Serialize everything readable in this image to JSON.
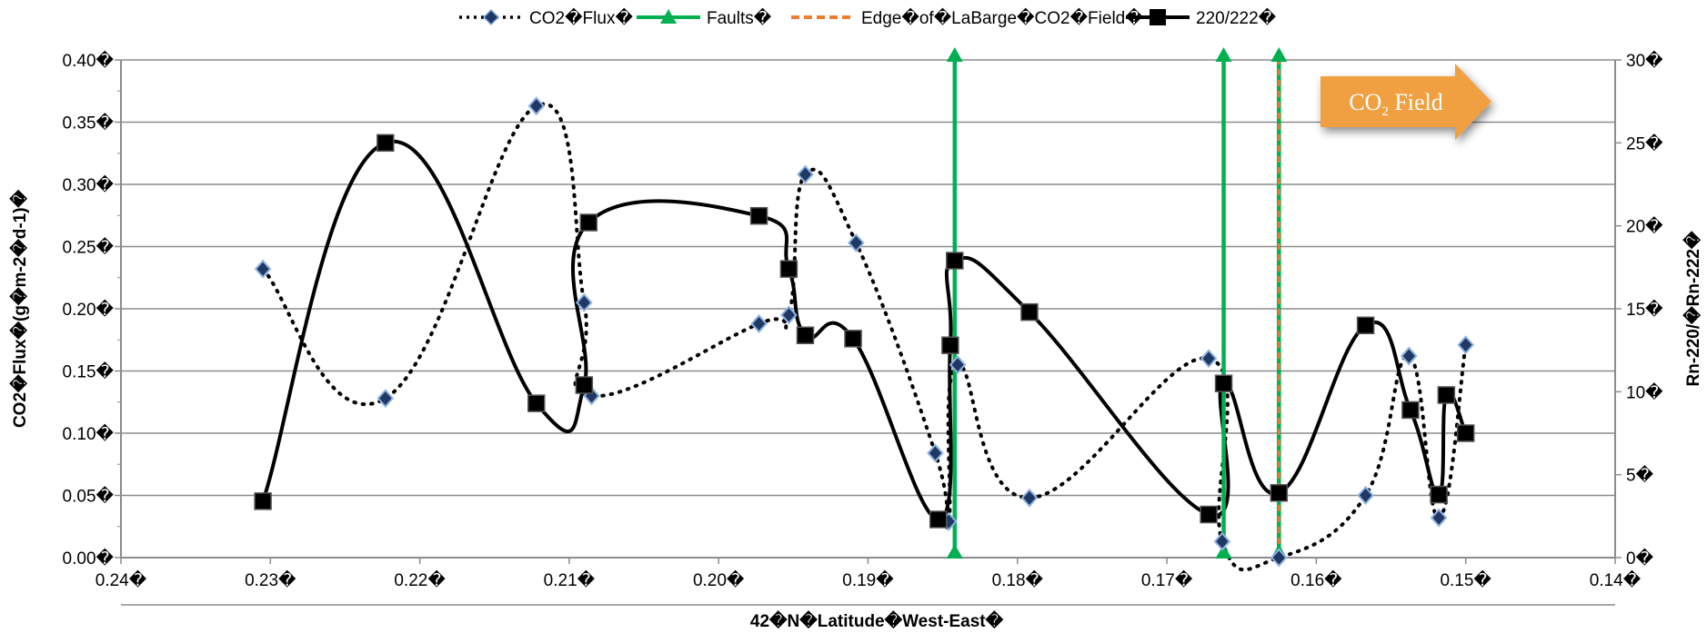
{
  "chart_data": {
    "type": "line",
    "x_axis": {
      "label": "42�N�Latitude�West-East�",
      "min": 0.14,
      "max": 0.24,
      "reversed": true,
      "ticks": [
        0.24,
        0.23,
        0.22,
        0.21,
        0.2,
        0.19,
        0.18,
        0.17,
        0.16,
        0.15,
        0.14
      ],
      "tick_labels": [
        "0.24�",
        "0.23�",
        "0.22�",
        "0.21�",
        "0.20�",
        "0.19�",
        "0.18�",
        "0.17�",
        "0.16�",
        "0.15�",
        "0.14�"
      ]
    },
    "y_left": {
      "label": "CO2�Flux�(g�m-2�d-1)�",
      "min": 0,
      "max": 0.4,
      "ticks": [
        0,
        0.05,
        0.1,
        0.15,
        0.2,
        0.25,
        0.3,
        0.35,
        0.4
      ],
      "tick_labels": [
        "0.00�",
        "0.05�",
        "0.10�",
        "0.15�",
        "0.20�",
        "0.25�",
        "0.30�",
        "0.35�",
        "0.40�"
      ]
    },
    "y_right": {
      "label": "Rn-220/�Rn-222�",
      "min": 0,
      "max": 30,
      "ticks": [
        0,
        5,
        10,
        15,
        20,
        25,
        30
      ],
      "tick_labels": [
        "0�",
        "5�",
        "10�",
        "15�",
        "20�",
        "25�",
        "30�"
      ]
    },
    "grid": true,
    "legend_position": "top-center",
    "series": [
      {
        "name": "CO2�Flux�",
        "axis": "left",
        "style": "dotted",
        "color": "#000000",
        "marker_color": "#1f3864",
        "marker": "diamond",
        "points": [
          {
            "x": 0.2305,
            "y": 0.232
          },
          {
            "x": 0.2223,
            "y": 0.128
          },
          {
            "x": 0.2122,
            "y": 0.363
          },
          {
            "x": 0.209,
            "y": 0.205
          },
          {
            "x": 0.2085,
            "y": 0.13
          },
          {
            "x": 0.1973,
            "y": 0.188
          },
          {
            "x": 0.1953,
            "y": 0.195
          },
          {
            "x": 0.1942,
            "y": 0.308
          },
          {
            "x": 0.1908,
            "y": 0.253
          },
          {
            "x": 0.1855,
            "y": 0.084
          },
          {
            "x": 0.1846,
            "y": 0.029
          },
          {
            "x": 0.184,
            "y": 0.155
          },
          {
            "x": 0.1792,
            "y": 0.048
          },
          {
            "x": 0.1672,
            "y": 0.16
          },
          {
            "x": 0.1663,
            "y": 0.013
          },
          {
            "x": 0.1625,
            "y": 0.0
          },
          {
            "x": 0.1567,
            "y": 0.05
          },
          {
            "x": 0.1538,
            "y": 0.162
          },
          {
            "x": 0.1518,
            "y": 0.032
          },
          {
            "x": 0.15,
            "y": 0.171
          }
        ]
      },
      {
        "name": "220/222�",
        "axis": "right",
        "style": "solid",
        "color": "#000000",
        "marker": "square",
        "points": [
          {
            "x": 0.2305,
            "y": 3.4
          },
          {
            "x": 0.2223,
            "y": 25.0
          },
          {
            "x": 0.2122,
            "y": 9.3
          },
          {
            "x": 0.209,
            "y": 10.4
          },
          {
            "x": 0.2087,
            "y": 20.2
          },
          {
            "x": 0.1973,
            "y": 20.6
          },
          {
            "x": 0.1953,
            "y": 17.4
          },
          {
            "x": 0.1942,
            "y": 13.4
          },
          {
            "x": 0.191,
            "y": 13.2
          },
          {
            "x": 0.1853,
            "y": 2.3
          },
          {
            "x": 0.1845,
            "y": 12.8
          },
          {
            "x": 0.1842,
            "y": 17.9
          },
          {
            "x": 0.1792,
            "y": 14.8
          },
          {
            "x": 0.1672,
            "y": 2.6
          },
          {
            "x": 0.1662,
            "y": 10.5
          },
          {
            "x": 0.1625,
            "y": 3.9
          },
          {
            "x": 0.1567,
            "y": 14.0
          },
          {
            "x": 0.1537,
            "y": 8.9
          },
          {
            "x": 0.1518,
            "y": 3.8
          },
          {
            "x": 0.1513,
            "y": 9.8
          },
          {
            "x": 0.15,
            "y": 7.5
          }
        ]
      }
    ],
    "faults": {
      "name": "Faults�",
      "color": "#00b050",
      "x": [
        0.1842,
        0.1662,
        0.1625
      ]
    },
    "edge": {
      "name": "Edge�of�LaBarge�CO2�Field�",
      "color": "#ed7d31",
      "x": 0.1625
    },
    "callout": {
      "text": "CO",
      "subscript": "2",
      "suffix": " Field",
      "color": "#f0a040"
    }
  }
}
